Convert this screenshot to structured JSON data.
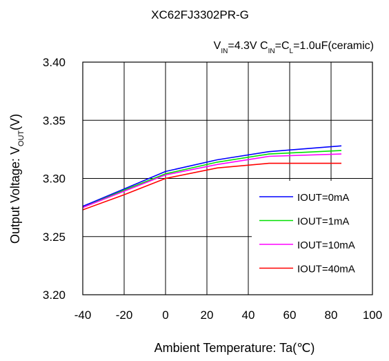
{
  "chart_data": {
    "type": "line",
    "title": "XC62FJ3302PR-G",
    "subtitle": {
      "parts": [
        {
          "t": "V"
        },
        {
          "t": "IN",
          "sub": true
        },
        {
          "t": "=4.3V C"
        },
        {
          "t": "IN",
          "sub": true
        },
        {
          "t": "=C"
        },
        {
          "t": "L",
          "sub": true
        },
        {
          "t": "=1.0uF(ceramic)"
        }
      ]
    },
    "xlabel": "Ambient Temperature: Ta(℃)",
    "ylabel": {
      "parts": [
        {
          "t": "Output Voltage: V"
        },
        {
          "t": "OUT",
          "sub": true
        },
        {
          "t": "(V)"
        }
      ]
    },
    "xlim": [
      -40,
      100
    ],
    "ylim": [
      3.2,
      3.4
    ],
    "xticks": [
      "-40",
      "-20",
      "0",
      "20",
      "40",
      "60",
      "80",
      "100"
    ],
    "yticks": [
      "3.20",
      "3.25",
      "3.30",
      "3.35",
      "3.40"
    ],
    "grid": true,
    "legend_position": "lower-right",
    "x": [
      -40,
      -20,
      0,
      25,
      50,
      85
    ],
    "series": [
      {
        "name": "IOUT=0mA",
        "color": "#0000ff",
        "values": [
          3.276,
          3.291,
          3.306,
          3.316,
          3.323,
          3.328
        ]
      },
      {
        "name": "IOUT=1mA",
        "color": "#00e000",
        "values": [
          3.275,
          3.29,
          3.304,
          3.314,
          3.321,
          3.324
        ]
      },
      {
        "name": "IOUT=10mA",
        "color": "#ff00ff",
        "values": [
          3.275,
          3.289,
          3.303,
          3.312,
          3.319,
          3.321
        ]
      },
      {
        "name": "IOUT=40mA",
        "color": "#ff0000",
        "values": [
          3.273,
          3.286,
          3.3,
          3.309,
          3.313,
          3.313
        ]
      }
    ]
  }
}
